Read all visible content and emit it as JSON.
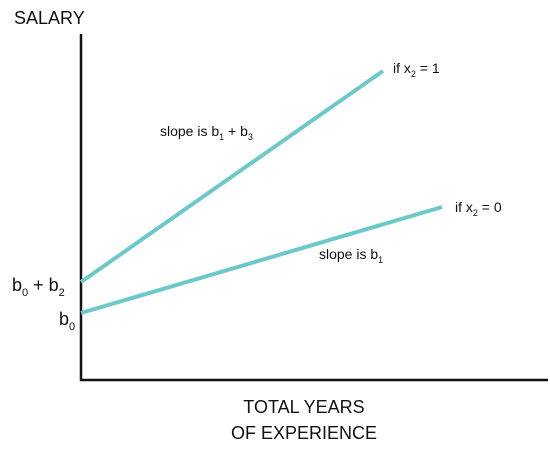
{
  "diagram": {
    "y_axis_label": "SALARY",
    "x_axis_label_line1": "TOTAL YEARS",
    "x_axis_label_line2": "OF EXPERIENCE",
    "intercept_low": {
      "main": "b",
      "sub": "0"
    },
    "intercept_high": {
      "main1": "b",
      "sub1": "0",
      "mid": " + b",
      "sub2": "2"
    },
    "line_x2_1_label": {
      "prefix": "if x",
      "sub": "2",
      "suffix": " = 1"
    },
    "line_x2_0_label": {
      "prefix": "if x",
      "sub": "2",
      "suffix": " = 0"
    },
    "slope_upper": {
      "prefix": "slope is b",
      "sub1": "1",
      "mid": " + b",
      "sub2": "3"
    },
    "slope_lower": {
      "prefix": "slope is b",
      "sub": "1"
    },
    "line_color": "#6cc9c9",
    "axis_color": "#111111"
  }
}
